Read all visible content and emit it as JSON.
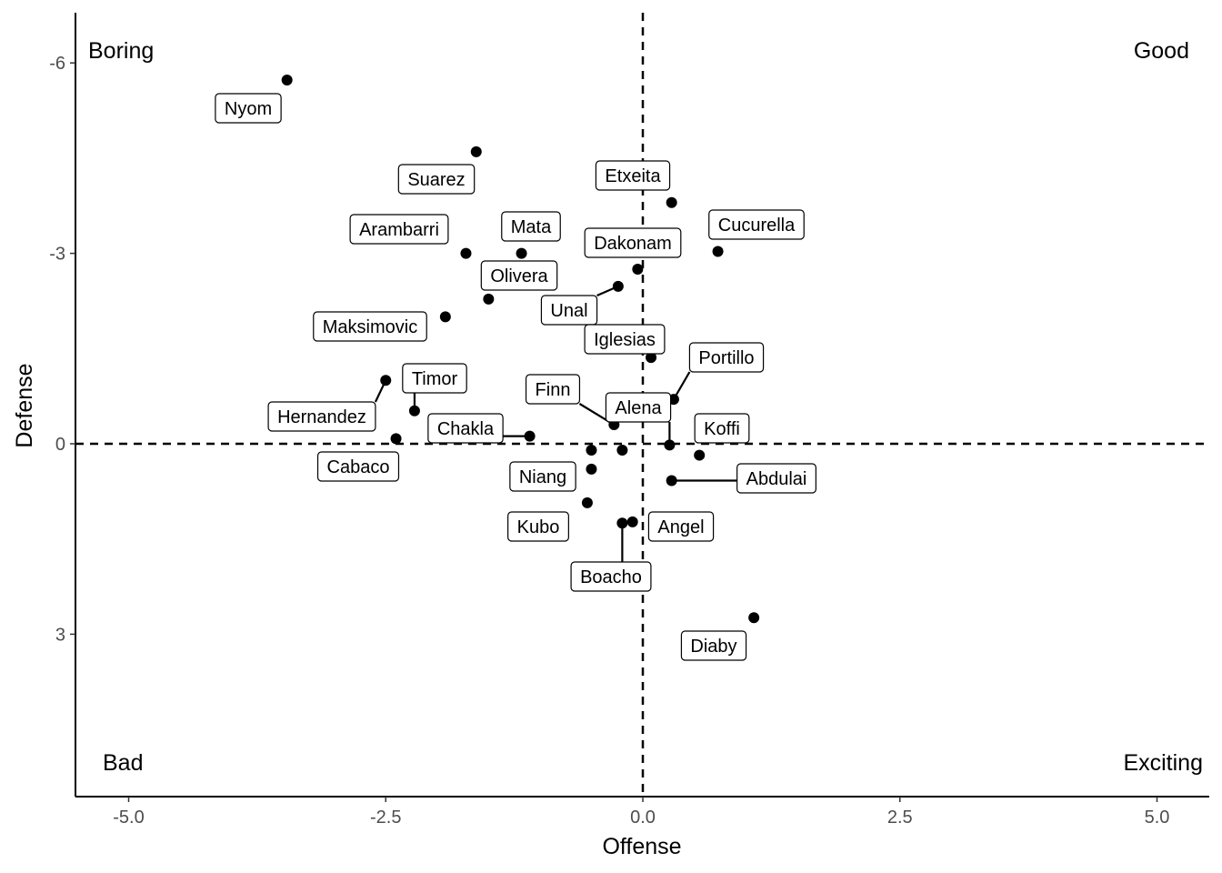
{
  "chart_data": {
    "type": "scatter",
    "title": "",
    "xlabel": "Offense",
    "ylabel": "Defense",
    "xlim": [
      -5.5,
      5.5
    ],
    "ylim": [
      5.5,
      -6.8
    ],
    "y_reversed": true,
    "x_ticks": [
      -5,
      -2.5,
      0,
      2.5,
      5
    ],
    "x_tick_labels": [
      "-5.0",
      "-2.5",
      "0.0",
      "2.5",
      "5.0"
    ],
    "y_ticks": [
      -6,
      -3,
      0,
      3
    ],
    "y_tick_labels": [
      "-6",
      "-3",
      "0",
      "3"
    ],
    "reference_lines": {
      "x": 0,
      "y": 0,
      "style": "dashed"
    },
    "grid": false,
    "quadrant_labels": {
      "top_left": "Boring",
      "top_right": "Good",
      "bottom_left": "Bad",
      "bottom_right": "Exciting"
    },
    "point_color": "#000000",
    "points": [
      {
        "name": "Nyom",
        "x": -3.46,
        "y": -5.73
      },
      {
        "name": "Suarez",
        "x": -1.62,
        "y": -4.6
      },
      {
        "name": "Etxeita",
        "x": 0.28,
        "y": -3.8
      },
      {
        "name": "Cucurella",
        "x": 0.73,
        "y": -3.03
      },
      {
        "name": "Arambarri",
        "x": -1.72,
        "y": -3.0
      },
      {
        "name": "Mata",
        "x": -1.18,
        "y": -3.0
      },
      {
        "name": "Dakonam",
        "x": -0.05,
        "y": -2.75
      },
      {
        "name": "Olivera",
        "x": -1.5,
        "y": -2.28
      },
      {
        "name": "Unal",
        "x": -0.24,
        "y": -2.48
      },
      {
        "name": "Maksimovic",
        "x": -1.92,
        "y": -2.0
      },
      {
        "name": "Iglesias",
        "x": 0.08,
        "y": -1.36
      },
      {
        "name": "Portillo",
        "x": 0.3,
        "y": -0.7
      },
      {
        "name": "Timor",
        "x": -2.22,
        "y": -0.52
      },
      {
        "name": "Hernandez",
        "x": -2.5,
        "y": -1.0
      },
      {
        "name": "Finn",
        "x": -0.28,
        "y": -0.3
      },
      {
        "name": "Alena",
        "x": 0.26,
        "y": 0.02
      },
      {
        "name": "Chakla",
        "x": -1.1,
        "y": -0.12
      },
      {
        "name": "Cabaco",
        "x": -2.4,
        "y": -0.08
      },
      {
        "name": "Koffi",
        "x": 0.55,
        "y": 0.18
      },
      {
        "name": "Abdulai",
        "x": 0.28,
        "y": 0.58
      },
      {
        "name": "Niang",
        "x": -0.5,
        "y": 0.4
      },
      {
        "name": "Kubo",
        "x": -0.54,
        "y": 0.93
      },
      {
        "name": "Angel",
        "x": -0.1,
        "y": 1.23
      },
      {
        "name": "Boacho",
        "x": -0.2,
        "y": 1.25
      },
      {
        "name": "Diaby",
        "x": 1.08,
        "y": 2.74
      },
      {
        "name": "",
        "x": -0.5,
        "y": 0.1
      },
      {
        "name": "",
        "x": -0.2,
        "y": 0.1
      }
    ]
  }
}
